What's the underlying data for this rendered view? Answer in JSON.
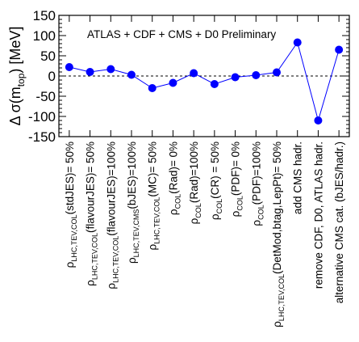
{
  "chart_data": {
    "type": "line",
    "title": "",
    "annotation": "ATLAS + CDF + CMS + D0 Preliminary",
    "ylabel": {
      "main": "Δ σ(m",
      "sub": "top",
      "tail": ") [MeV]"
    },
    "ylim": [
      -150,
      150
    ],
    "yticks": [
      -150,
      -100,
      -50,
      0,
      50,
      100,
      150
    ],
    "reference_line": 0,
    "grid": false,
    "colors": {
      "line": "#0000ff",
      "marker": "#0000ff",
      "reference": "#000000"
    },
    "categories": [
      {
        "rho": "ρ",
        "sub": "LHC,TEV,COL",
        "text": "(stdJES)= 50%"
      },
      {
        "rho": "ρ",
        "sub": "LHC,TEV,COL",
        "text": "(flavourJES)= 50%"
      },
      {
        "rho": "ρ",
        "sub": "LHC,TEV,COL",
        "text": "(flavourJES)=100%"
      },
      {
        "rho": "ρ",
        "sub": "LHC,TEV,CMS",
        "text": "(bJES)=100%"
      },
      {
        "rho": "ρ",
        "sub": "LHC,TEV,COL",
        "text": "(MC)= 50%"
      },
      {
        "rho": "ρ",
        "sub": "COL",
        "text": "(Rad)= 0%"
      },
      {
        "rho": "ρ",
        "sub": "COL",
        "text": "(Rad)=100%"
      },
      {
        "rho": "ρ",
        "sub": "COL",
        "text": "(CR) = 50%"
      },
      {
        "rho": "ρ",
        "sub": "COL",
        "text": "(PDF)= 0%"
      },
      {
        "rho": "ρ",
        "sub": "COL",
        "text": "(PDF)=100%"
      },
      {
        "rho": "ρ",
        "sub": "LHC,TEV,COL",
        "text": "(DetMod,btag,LepPt)= 50%"
      },
      {
        "rho": "",
        "sub": "",
        "text": "add CMS hadr."
      },
      {
        "rho": "",
        "sub": "",
        "text": "remove CDF, D0, ATLAS hadr."
      },
      {
        "rho": "",
        "sub": "",
        "text": "alternative CMS cat. (bJES/hadr.)"
      }
    ],
    "values": [
      22,
      10,
      17,
      3,
      -30,
      -17,
      7,
      -20,
      -3,
      2,
      9,
      83,
      -110,
      65
    ]
  }
}
